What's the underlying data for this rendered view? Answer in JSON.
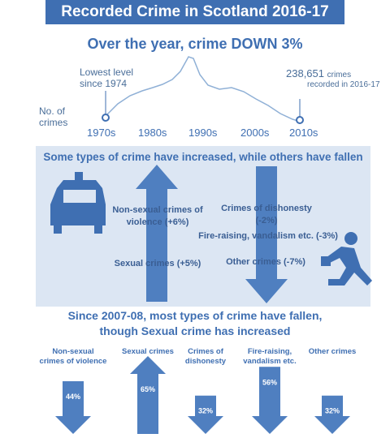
{
  "title": "Recorded Crime in Scotland 2016-17",
  "headline": "Over the year, crime DOWN 3%",
  "trend": {
    "lowest_label": "Lowest level since 1974",
    "latest_value": "238,651",
    "latest_suffix": "crimes",
    "latest_label2": "recorded in 2016-17",
    "ylabel": "No. of crimes",
    "decades": [
      "1970s",
      "1980s",
      "1990s",
      "2000s",
      "2010s"
    ]
  },
  "band": {
    "title": "Some types of crime have increased, while others have fallen",
    "increased": [
      "Non-sexual crimes of violence (+6%)",
      "Sexual crimes (+5%)"
    ],
    "decreased": [
      "Crimes of dishonesty (-2%)",
      "Fire-raising, vandalism etc. (-3%)",
      "Other crimes (-7%)"
    ]
  },
  "subtitle_line1": "Since 2007-08, most types of crime have fallen,",
  "subtitle_line2": "though Sexual crime has increased",
  "colors": {
    "primary": "#3f6fb2",
    "arrow": "#4f7fc0",
    "band": "#dce6f3"
  },
  "chart_data": {
    "type": "bar",
    "categories": [
      "Non-sexual crimes of violence",
      "Sexual crimes",
      "Crimes of dishonesty",
      "Fire-raising, vandalism etc.",
      "Other crimes"
    ],
    "value_labels": [
      "44%",
      "65%",
      "32%",
      "56%",
      "32%"
    ],
    "values": [
      -44,
      65,
      -32,
      -56,
      -32
    ],
    "direction": [
      "down",
      "up",
      "down",
      "down",
      "down"
    ]
  }
}
